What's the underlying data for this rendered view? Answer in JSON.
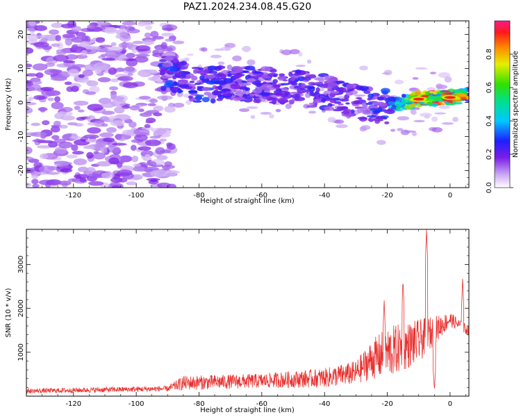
{
  "title": "PAZ1.2024.234.08.45.G20",
  "colors": {
    "snr_line": "#e8312f",
    "axis": "#000000"
  },
  "chart_data": [
    {
      "type": "heatmap",
      "title": "PAZ1.2024.234.08.45.G20",
      "xlabel": "Height of straight line (km)",
      "ylabel": "Frequency (Hz)",
      "xlim": [
        -135,
        6
      ],
      "ylim": [
        -25,
        24
      ],
      "xticks": [
        -120,
        -100,
        -80,
        -60,
        -40,
        -20,
        0
      ],
      "yticks": [
        -20,
        -10,
        0,
        10,
        20
      ],
      "colorbar": {
        "label": "Normalized spectral amplitude",
        "range": [
          0,
          1
        ],
        "ticks": [
          0.0,
          0.2,
          0.4,
          0.6,
          0.8
        ],
        "tick_labels": [
          "0.0",
          "0.2",
          "0.4",
          "0.6",
          "0.8"
        ],
        "colormap": "rainbow (white→violet→blue→cyan→green→yellow→orange→red→magenta)"
      },
      "ridge": [
        {
          "height_km": -90,
          "frequency_hz": 9,
          "amplitude": 0.3
        },
        {
          "height_km": -80,
          "frequency_hz": 5,
          "amplitude": 0.3
        },
        {
          "height_km": -70,
          "frequency_hz": 6,
          "amplitude": 0.25
        },
        {
          "height_km": -60,
          "frequency_hz": 5,
          "amplitude": 0.25
        },
        {
          "height_km": -50,
          "frequency_hz": 5,
          "amplitude": 0.25
        },
        {
          "height_km": -40,
          "frequency_hz": 3,
          "amplitude": 0.25
        },
        {
          "height_km": -30,
          "frequency_hz": 0,
          "amplitude": 0.25
        },
        {
          "height_km": -20,
          "frequency_hz": -1,
          "amplitude": 0.3
        },
        {
          "height_km": -10,
          "frequency_hz": 1,
          "amplitude": 0.9
        },
        {
          "height_km": 0,
          "frequency_hz": 1.5,
          "amplitude": 0.9
        },
        {
          "height_km": 6,
          "frequency_hz": 2,
          "amplitude": 0.4
        }
      ]
    },
    {
      "type": "line",
      "xlabel": "Height of straight line (km)",
      "ylabel": "SNR (10 * v/v)",
      "xlim": [
        -135,
        6
      ],
      "ylim": [
        0,
        3800
      ],
      "xticks": [
        -120,
        -100,
        -80,
        -60,
        -40,
        -20,
        0
      ],
      "yticks": [
        1000,
        2000,
        3000
      ],
      "grid": false,
      "envelope": [
        {
          "x": -135,
          "base": 100,
          "spread": 100
        },
        {
          "x": -90,
          "base": 150,
          "spread": 120
        },
        {
          "x": -85,
          "base": 250,
          "spread": 300
        },
        {
          "x": -60,
          "base": 300,
          "spread": 300
        },
        {
          "x": -40,
          "base": 350,
          "spread": 400
        },
        {
          "x": -30,
          "base": 450,
          "spread": 500
        },
        {
          "x": -25,
          "base": 700,
          "spread": 800
        },
        {
          "x": -20,
          "base": 800,
          "spread": 1100
        },
        {
          "x": -10,
          "base": 1100,
          "spread": 900
        },
        {
          "x": 0,
          "base": 1700,
          "spread": 300
        },
        {
          "x": 6,
          "base": 1450,
          "spread": 200
        }
      ],
      "peaks": [
        {
          "x": -7.5,
          "y": 3800
        },
        {
          "x": -15,
          "y": 2650
        },
        {
          "x": -21,
          "y": 2200
        },
        {
          "x": 4,
          "y": 2700
        }
      ],
      "dips": [
        {
          "x": -5,
          "y": 150
        }
      ]
    }
  ]
}
